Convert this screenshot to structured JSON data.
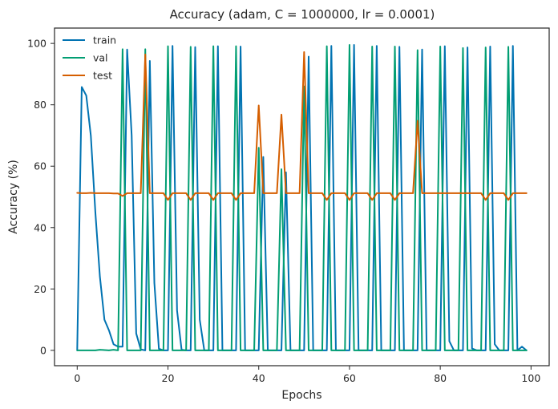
{
  "chart_data": {
    "type": "line",
    "title": "Accuracy (adam, C = 1000000, lr = 0.0001)",
    "xlabel": "Epochs",
    "ylabel": "Accuracy (%)",
    "xlim": [
      -5,
      104
    ],
    "ylim": [
      -5,
      105
    ],
    "xticks": [
      0,
      20,
      40,
      60,
      80,
      100
    ],
    "yticks": [
      0,
      20,
      40,
      60,
      80,
      100
    ],
    "grid": false,
    "legend_position": "top-left",
    "series": [
      {
        "name": "train",
        "color": "#0173b2",
        "points": [
          [
            0,
            0
          ],
          [
            1,
            85.8
          ],
          [
            2,
            83
          ],
          [
            3,
            70
          ],
          [
            4,
            45
          ],
          [
            5,
            24
          ],
          [
            6,
            10
          ],
          [
            7,
            6.5
          ],
          [
            8,
            2
          ],
          [
            9,
            1.2
          ],
          [
            10,
            1.2
          ],
          [
            11,
            98
          ],
          [
            12,
            70
          ],
          [
            13,
            5.5
          ],
          [
            14,
            0.3
          ],
          [
            15,
            0
          ],
          [
            16,
            94.3
          ],
          [
            17,
            22
          ],
          [
            18,
            0.5
          ],
          [
            19,
            0
          ],
          [
            20,
            0
          ],
          [
            21,
            99.2
          ],
          [
            22,
            13
          ],
          [
            23,
            0.2
          ],
          [
            24,
            0
          ],
          [
            25,
            0
          ],
          [
            26,
            98.8
          ],
          [
            27,
            10
          ],
          [
            28,
            0
          ],
          [
            29,
            0
          ],
          [
            30,
            0
          ],
          [
            31,
            99.1
          ],
          [
            32,
            0
          ],
          [
            33,
            0
          ],
          [
            34,
            0
          ],
          [
            35,
            0
          ],
          [
            36,
            99
          ],
          [
            37,
            0
          ],
          [
            38,
            0
          ],
          [
            39,
            0
          ],
          [
            40,
            0
          ],
          [
            41,
            63
          ],
          [
            42,
            0
          ],
          [
            43,
            0
          ],
          [
            44,
            0
          ],
          [
            45,
            0
          ],
          [
            46,
            58
          ],
          [
            47,
            0
          ],
          [
            48,
            0
          ],
          [
            49,
            0
          ],
          [
            50,
            0
          ],
          [
            51,
            95.7
          ],
          [
            52,
            0
          ],
          [
            53,
            0
          ],
          [
            54,
            0
          ],
          [
            55,
            0
          ],
          [
            56,
            99.2
          ],
          [
            57,
            0
          ],
          [
            58,
            0
          ],
          [
            59,
            0
          ],
          [
            60,
            0
          ],
          [
            61,
            99.5
          ],
          [
            62,
            0
          ],
          [
            63,
            0
          ],
          [
            64,
            0
          ],
          [
            65,
            0
          ],
          [
            66,
            99.2
          ],
          [
            67,
            0
          ],
          [
            68,
            0
          ],
          [
            69,
            0
          ],
          [
            70,
            0
          ],
          [
            71,
            98.9
          ],
          [
            72,
            0
          ],
          [
            73,
            0
          ],
          [
            74,
            0
          ],
          [
            75,
            0
          ],
          [
            76,
            98
          ],
          [
            77,
            0
          ],
          [
            78,
            0
          ],
          [
            79,
            0
          ],
          [
            80,
            0
          ],
          [
            81,
            99.1
          ],
          [
            82,
            3
          ],
          [
            83,
            0
          ],
          [
            84,
            0
          ],
          [
            85,
            0
          ],
          [
            86,
            98.7
          ],
          [
            87,
            0.6
          ],
          [
            88,
            0
          ],
          [
            89,
            0
          ],
          [
            90,
            0
          ],
          [
            91,
            99
          ],
          [
            92,
            2
          ],
          [
            93,
            0
          ],
          [
            94,
            0
          ],
          [
            95,
            0
          ],
          [
            96,
            99.2
          ],
          [
            97,
            0
          ],
          [
            98,
            1.2
          ],
          [
            99,
            0
          ]
        ]
      },
      {
        "name": "val",
        "color": "#029e73",
        "points": [
          [
            0,
            0
          ],
          [
            1,
            0
          ],
          [
            2,
            0
          ],
          [
            3,
            0
          ],
          [
            4,
            0
          ],
          [
            5,
            0.2
          ],
          [
            6,
            0.1
          ],
          [
            7,
            0
          ],
          [
            8,
            0.2
          ],
          [
            9,
            0
          ],
          [
            10,
            98.1
          ],
          [
            11,
            0
          ],
          [
            12,
            0
          ],
          [
            13,
            0
          ],
          [
            14,
            0
          ],
          [
            15,
            98.1
          ],
          [
            16,
            0
          ],
          [
            17,
            0
          ],
          [
            18,
            0
          ],
          [
            19,
            0
          ],
          [
            20,
            99.1
          ],
          [
            21,
            0
          ],
          [
            22,
            0
          ],
          [
            23,
            0
          ],
          [
            24,
            0
          ],
          [
            25,
            98.9
          ],
          [
            26,
            0
          ],
          [
            27,
            0
          ],
          [
            28,
            0
          ],
          [
            29,
            0
          ],
          [
            30,
            99.1
          ],
          [
            31,
            0
          ],
          [
            32,
            0
          ],
          [
            33,
            0
          ],
          [
            34,
            0
          ],
          [
            35,
            99.1
          ],
          [
            36,
            0
          ],
          [
            37,
            0
          ],
          [
            38,
            0
          ],
          [
            39,
            0
          ],
          [
            40,
            66
          ],
          [
            41,
            0
          ],
          [
            42,
            0
          ],
          [
            43,
            0
          ],
          [
            44,
            0
          ],
          [
            45,
            59
          ],
          [
            46,
            0
          ],
          [
            47,
            0
          ],
          [
            48,
            0
          ],
          [
            49,
            0
          ],
          [
            50,
            86
          ],
          [
            51,
            0
          ],
          [
            52,
            0
          ],
          [
            53,
            0
          ],
          [
            54,
            0
          ],
          [
            55,
            99.1
          ],
          [
            56,
            0
          ],
          [
            57,
            0
          ],
          [
            58,
            0
          ],
          [
            59,
            0
          ],
          [
            60,
            99.5
          ],
          [
            61,
            0
          ],
          [
            62,
            0
          ],
          [
            63,
            0
          ],
          [
            64,
            0
          ],
          [
            65,
            99
          ],
          [
            66,
            0
          ],
          [
            67,
            0
          ],
          [
            68,
            0
          ],
          [
            69,
            0
          ],
          [
            70,
            99
          ],
          [
            71,
            0
          ],
          [
            72,
            0
          ],
          [
            73,
            0
          ],
          [
            74,
            0
          ],
          [
            75,
            97.8
          ],
          [
            76,
            0
          ],
          [
            77,
            0
          ],
          [
            78,
            0
          ],
          [
            79,
            0
          ],
          [
            80,
            99
          ],
          [
            81,
            0
          ],
          [
            82,
            0
          ],
          [
            83,
            0
          ],
          [
            84,
            0
          ],
          [
            85,
            98.5
          ],
          [
            86,
            0
          ],
          [
            87,
            0
          ],
          [
            88,
            0
          ],
          [
            89,
            0
          ],
          [
            90,
            98.7
          ],
          [
            91,
            0
          ],
          [
            92,
            0
          ],
          [
            93,
            0
          ],
          [
            94,
            0
          ],
          [
            95,
            98.9
          ],
          [
            96,
            0
          ],
          [
            97,
            0
          ],
          [
            98,
            0
          ],
          [
            99,
            0
          ]
        ]
      },
      {
        "name": "test",
        "color": "#d55e00",
        "points": [
          [
            0,
            51.3
          ],
          [
            1,
            51.2
          ],
          [
            2,
            51.2
          ],
          [
            3,
            51.3
          ],
          [
            4,
            51.2
          ],
          [
            5,
            51.2
          ],
          [
            6,
            51.2
          ],
          [
            7,
            51.2
          ],
          [
            8,
            51.1
          ],
          [
            9,
            51.1
          ],
          [
            10,
            50.3
          ],
          [
            11,
            51.2
          ],
          [
            12,
            51.2
          ],
          [
            13,
            51.2
          ],
          [
            14,
            51.2
          ],
          [
            15,
            96.4
          ],
          [
            16,
            51.2
          ],
          [
            17,
            51.2
          ],
          [
            18,
            51.2
          ],
          [
            19,
            51.2
          ],
          [
            20,
            49
          ],
          [
            21,
            51.2
          ],
          [
            22,
            51.2
          ],
          [
            23,
            51.2
          ],
          [
            24,
            51.2
          ],
          [
            25,
            49
          ],
          [
            26,
            51.2
          ],
          [
            27,
            51.2
          ],
          [
            28,
            51.2
          ],
          [
            29,
            51.2
          ],
          [
            30,
            49
          ],
          [
            31,
            51.2
          ],
          [
            32,
            51.2
          ],
          [
            33,
            51.2
          ],
          [
            34,
            51.2
          ],
          [
            35,
            49
          ],
          [
            36,
            51.2
          ],
          [
            37,
            51.2
          ],
          [
            38,
            51.2
          ],
          [
            39,
            51.2
          ],
          [
            40,
            79.8
          ],
          [
            41,
            51.2
          ],
          [
            42,
            51.2
          ],
          [
            43,
            51.2
          ],
          [
            44,
            51.2
          ],
          [
            45,
            76.8
          ],
          [
            46,
            51.2
          ],
          [
            47,
            51.2
          ],
          [
            48,
            51.2
          ],
          [
            49,
            51.2
          ],
          [
            50,
            97.2
          ],
          [
            51,
            51.2
          ],
          [
            52,
            51.2
          ],
          [
            53,
            51.2
          ],
          [
            54,
            51.2
          ],
          [
            55,
            49
          ],
          [
            56,
            51.2
          ],
          [
            57,
            51.2
          ],
          [
            58,
            51.2
          ],
          [
            59,
            51.2
          ],
          [
            60,
            49
          ],
          [
            61,
            51.2
          ],
          [
            62,
            51.2
          ],
          [
            63,
            51.2
          ],
          [
            64,
            51.2
          ],
          [
            65,
            49
          ],
          [
            66,
            51.2
          ],
          [
            67,
            51.2
          ],
          [
            68,
            51.2
          ],
          [
            69,
            51.2
          ],
          [
            70,
            49
          ],
          [
            71,
            51.2
          ],
          [
            72,
            51.2
          ],
          [
            73,
            51.2
          ],
          [
            74,
            51.2
          ],
          [
            75,
            74.8
          ],
          [
            76,
            51.2
          ],
          [
            77,
            51.2
          ],
          [
            78,
            51.2
          ],
          [
            79,
            51.2
          ],
          [
            80,
            51.2
          ],
          [
            81,
            51.2
          ],
          [
            82,
            51.2
          ],
          [
            83,
            51.2
          ],
          [
            84,
            51.2
          ],
          [
            85,
            51.2
          ],
          [
            86,
            51.2
          ],
          [
            87,
            51.2
          ],
          [
            88,
            51.2
          ],
          [
            89,
            51.2
          ],
          [
            90,
            49
          ],
          [
            91,
            51.2
          ],
          [
            92,
            51.2
          ],
          [
            93,
            51.2
          ],
          [
            94,
            51.2
          ],
          [
            95,
            49
          ],
          [
            96,
            51.2
          ],
          [
            97,
            51.2
          ],
          [
            98,
            51.2
          ],
          [
            99,
            51.2
          ]
        ]
      }
    ]
  }
}
